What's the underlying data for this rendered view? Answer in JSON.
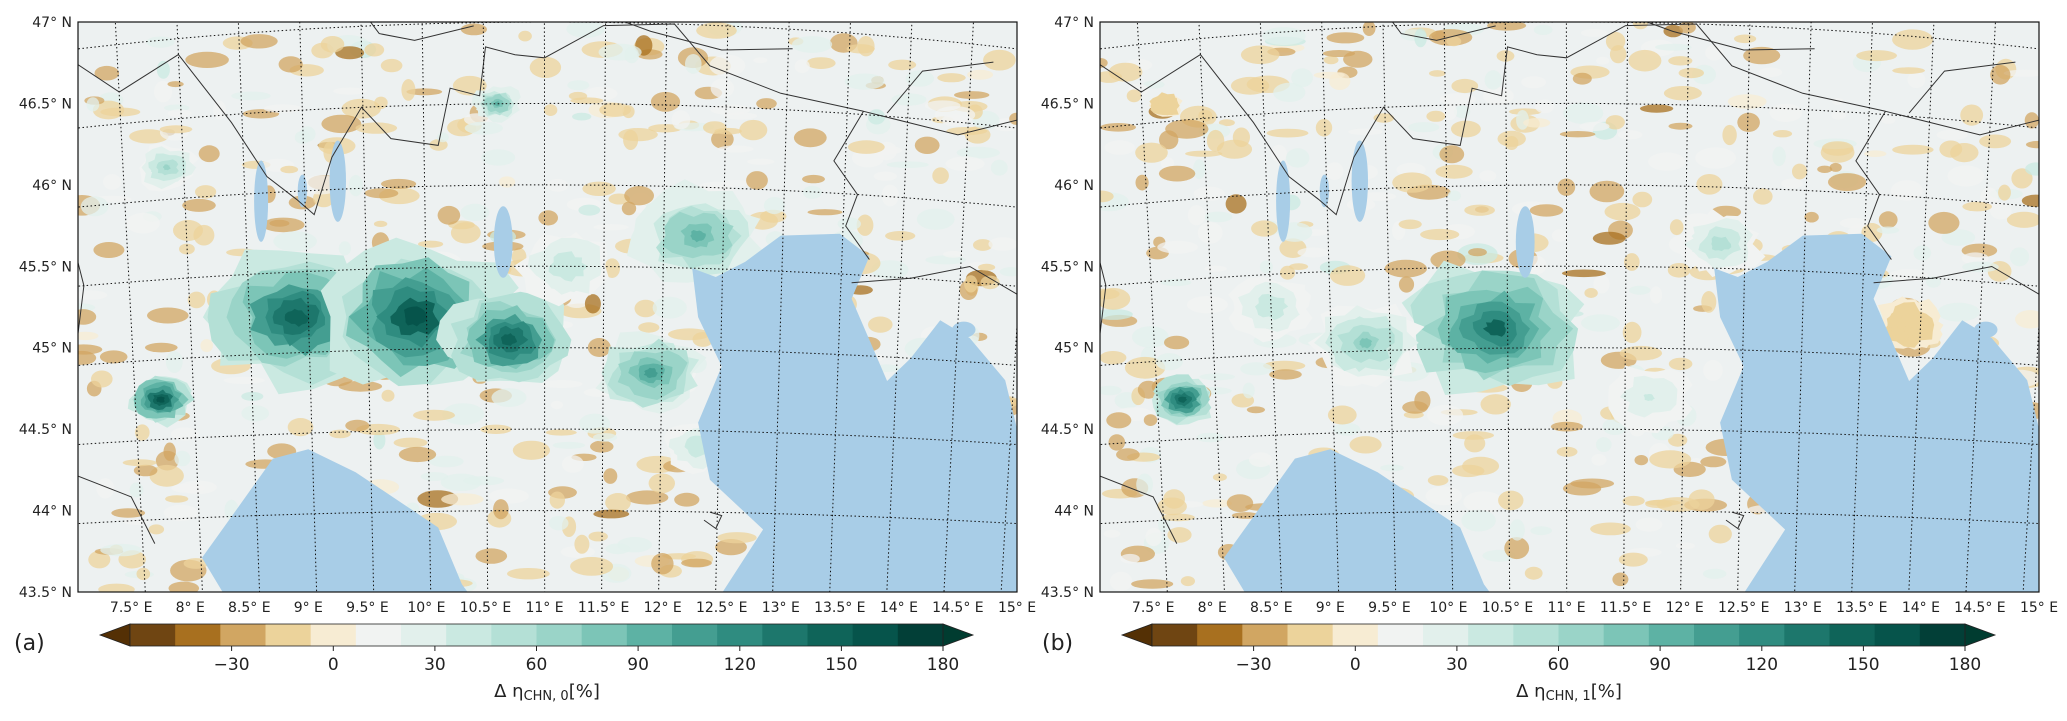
{
  "panels": [
    {
      "id": "a",
      "letter": "(a)",
      "colorbar_label_main": "Δ η",
      "colorbar_label_sub": "CHN, 0",
      "colorbar_label_unit": "[%]",
      "hotspots": [
        {
          "lon": 8.9,
          "lat": 45.22,
          "r": 0.75,
          "v": 150
        },
        {
          "lon": 9.9,
          "lat": 45.2,
          "r": 0.8,
          "v": 160
        },
        {
          "lon": 10.7,
          "lat": 45.05,
          "r": 0.55,
          "v": 150
        },
        {
          "lon": 7.75,
          "lat": 44.75,
          "r": 0.28,
          "v": 165
        },
        {
          "lon": 11.9,
          "lat": 44.85,
          "r": 0.45,
          "v": 105
        },
        {
          "lon": 12.3,
          "lat": 45.7,
          "r": 0.55,
          "v": 90
        },
        {
          "lon": 12.3,
          "lat": 44.4,
          "r": 0.3,
          "v": 45
        },
        {
          "lon": 10.6,
          "lat": 46.5,
          "r": 0.2,
          "v": 90
        },
        {
          "lon": 7.8,
          "lat": 46.2,
          "r": 0.25,
          "v": 60
        },
        {
          "lon": 11.2,
          "lat": 45.5,
          "r": 0.4,
          "v": 45
        }
      ]
    },
    {
      "id": "b",
      "letter": "(b)",
      "colorbar_label_main": "Δ η",
      "colorbar_label_sub": "CHN, 1",
      "colorbar_label_unit": "[%]",
      "hotspots": [
        {
          "lon": 10.4,
          "lat": 45.12,
          "r": 0.75,
          "v": 140
        },
        {
          "lon": 9.3,
          "lat": 45.05,
          "r": 0.45,
          "v": 75
        },
        {
          "lon": 7.75,
          "lat": 44.75,
          "r": 0.28,
          "v": 150
        },
        {
          "lon": 12.3,
          "lat": 45.65,
          "r": 0.35,
          "v": 55
        },
        {
          "lon": 11.7,
          "lat": 44.7,
          "r": 0.35,
          "v": 35
        },
        {
          "lon": 8.5,
          "lat": 45.3,
          "r": 0.35,
          "v": 45
        },
        {
          "lon": 13.9,
          "lat": 45.2,
          "r": 0.3,
          "v": -15
        },
        {
          "lon": 7.6,
          "lat": 46.6,
          "r": 0.15,
          "v": -20
        }
      ]
    }
  ],
  "map": {
    "lat_labels": [
      "47° N",
      "46.5° N",
      "46° N",
      "45.5° N",
      "45° N",
      "44.5° N",
      "44° N",
      "43.5° N"
    ],
    "lat_values": [
      47,
      46.5,
      46,
      45.5,
      45,
      44.5,
      44,
      43.5
    ],
    "lon_labels": [
      "7.5° E",
      "8° E",
      "8.5° E",
      "9° E",
      "9.5° E",
      "10° E",
      "10.5° E",
      "11° E",
      "11.5° E",
      "12° E",
      "12.5° E",
      "13° E",
      "13.5° E",
      "14° E",
      "14.5° E",
      "15° E"
    ],
    "lon_values": [
      7.5,
      8,
      8.5,
      9,
      9.5,
      10,
      10.5,
      11,
      11.5,
      12,
      12.5,
      13,
      13.5,
      14,
      14.5,
      15
    ],
    "extent": {
      "lon_min": 7.05,
      "lon_max": 15.0,
      "lat_min": 43.5,
      "lat_max": 47.0
    }
  },
  "colorbar": {
    "ticks": [
      "−30",
      "0",
      "30",
      "60",
      "90",
      "120",
      "150",
      "180"
    ],
    "tick_values": [
      -30,
      0,
      30,
      60,
      90,
      120,
      150,
      180
    ],
    "vmin": -60,
    "vmax": 180,
    "extend": "both",
    "colors": [
      "#6f4512",
      "#a8701f",
      "#d1a662",
      "#ecd39b",
      "#f7ecd3",
      "#f1f3f2",
      "#e2f0ec",
      "#cae9e1",
      "#b4e0d6",
      "#9ad4c8",
      "#7cc5b7",
      "#5db2a4",
      "#449e91",
      "#2f8c80",
      "#1d776c",
      "#0f6459",
      "#06544b",
      "#023f37"
    ],
    "under_color": "#543005",
    "over_color": "#003c30"
  },
  "colors": {
    "sea": "#a8cde7",
    "land": "#edf1f1",
    "grid": "#111111",
    "border": "#333333"
  }
}
